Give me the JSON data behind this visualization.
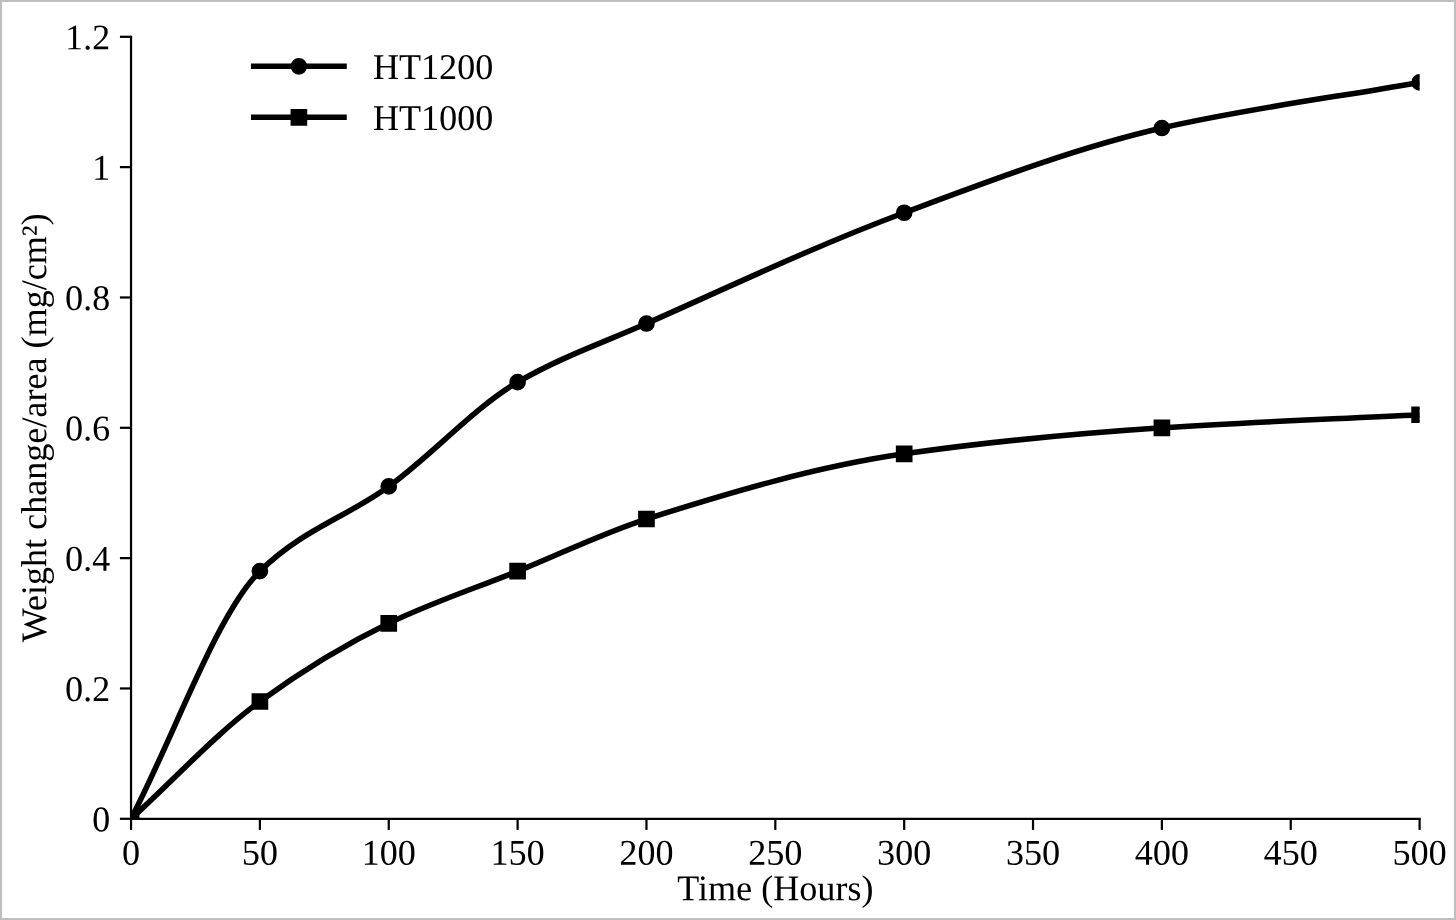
{
  "chart_data": {
    "type": "line",
    "xlabel": "Time (Hours)",
    "ylabel": "Weight change/area (mg/cm²)",
    "x": [
      0,
      50,
      100,
      150,
      200,
      300,
      400,
      500
    ],
    "series": [
      {
        "name": "HT1200",
        "color": "#000000",
        "marker": "circle",
        "values": [
          0,
          0.38,
          0.51,
          0.67,
          0.76,
          0.93,
          1.06,
          1.13
        ]
      },
      {
        "name": "HT1000",
        "color": "#000000",
        "marker": "square",
        "values": [
          0,
          0.18,
          0.3,
          0.38,
          0.46,
          0.56,
          0.6,
          0.62
        ]
      }
    ],
    "xlim": [
      0,
      500
    ],
    "xticks": [
      0,
      50,
      100,
      150,
      200,
      250,
      300,
      350,
      400,
      450,
      500
    ],
    "ylim": [
      0,
      1.2
    ],
    "yticks": [
      0,
      {
        "value": 0.2,
        "label": "0.2"
      },
      {
        "value": 0.4,
        "label": "0.4"
      },
      {
        "value": 0.6,
        "label": "0.6"
      },
      {
        "value": 0.8,
        "label": "0.8"
      },
      1,
      {
        "value": 1.2,
        "label": "1.2"
      }
    ],
    "grid": false,
    "legend": "top left",
    "line_style": "solid"
  }
}
